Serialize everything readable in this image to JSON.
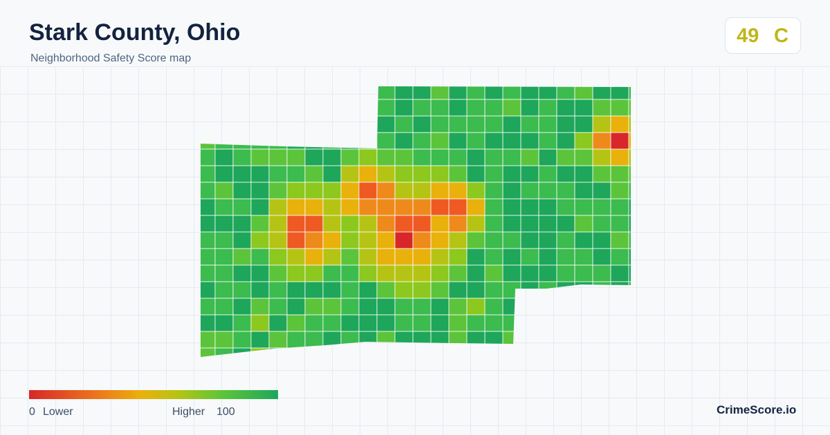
{
  "header": {
    "title": "Stark County, Ohio",
    "subtitle": "Neighborhood Safety Score map"
  },
  "score": {
    "value": 49,
    "grade": "C"
  },
  "legend": {
    "min": 0,
    "min_label": "Lower",
    "max_label": "Higher",
    "max": 100
  },
  "brand": "CrimeScore.io"
}
